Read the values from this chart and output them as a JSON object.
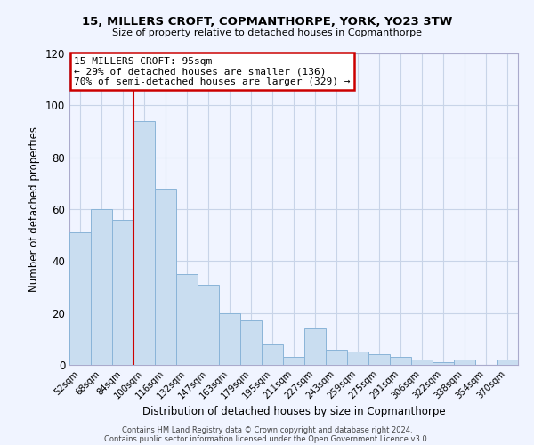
{
  "title": "15, MILLERS CROFT, COPMANTHORPE, YORK, YO23 3TW",
  "subtitle": "Size of property relative to detached houses in Copmanthorpe",
  "xlabel": "Distribution of detached houses by size in Copmanthorpe",
  "ylabel": "Number of detached properties",
  "bin_labels": [
    "52sqm",
    "68sqm",
    "84sqm",
    "100sqm",
    "116sqm",
    "132sqm",
    "147sqm",
    "163sqm",
    "179sqm",
    "195sqm",
    "211sqm",
    "227sqm",
    "243sqm",
    "259sqm",
    "275sqm",
    "291sqm",
    "306sqm",
    "322sqm",
    "338sqm",
    "354sqm",
    "370sqm"
  ],
  "bar_heights": [
    51,
    60,
    56,
    94,
    68,
    35,
    31,
    20,
    17,
    8,
    3,
    14,
    6,
    5,
    4,
    3,
    2,
    1,
    2,
    0,
    2
  ],
  "bar_color": "#c9ddf0",
  "bar_edge_color": "#8ab4d8",
  "ylim": [
    0,
    120
  ],
  "yticks": [
    0,
    20,
    40,
    60,
    80,
    100,
    120
  ],
  "property_line_index": 3,
  "property_line_color": "#cc0000",
  "annotation_title": "15 MILLERS CROFT: 95sqm",
  "annotation_line1": "← 29% of detached houses are smaller (136)",
  "annotation_line2": "70% of semi-detached houses are larger (329) →",
  "annotation_box_color": "white",
  "annotation_box_edge_color": "#cc0000",
  "footer1": "Contains HM Land Registry data © Crown copyright and database right 2024.",
  "footer2": "Contains public sector information licensed under the Open Government Licence v3.0.",
  "bg_color": "#f0f4ff",
  "grid_color": "#c8d4e8"
}
